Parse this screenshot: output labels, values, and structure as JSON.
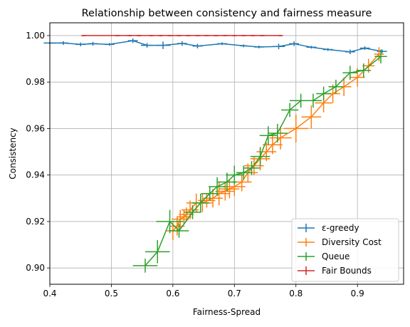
{
  "chart_data": {
    "type": "line",
    "title": "Relationship between consistency and fairness measure",
    "xlabel": "Fairness-Spread",
    "ylabel": "Consistency",
    "xlim": [
      0.4,
      0.975
    ],
    "ylim": [
      0.893,
      1.0055
    ],
    "xticks": [
      "0.4",
      "0.5",
      "0.6",
      "0.7",
      "0.8",
      "0.9"
    ],
    "yticks": [
      "0.90",
      "0.92",
      "0.94",
      "0.96",
      "0.98",
      "1.00"
    ],
    "grid": true,
    "legend_position": "lower-right",
    "series": [
      {
        "name": "ε-greedy",
        "color": "#1f77b4",
        "x": [
          0.4,
          0.422,
          0.45,
          0.47,
          0.497,
          0.535,
          0.558,
          0.584,
          0.615,
          0.64,
          0.68,
          0.715,
          0.74,
          0.772,
          0.797,
          0.825,
          0.852,
          0.888,
          0.912,
          0.94
        ],
        "y": [
          0.9968,
          0.9968,
          0.9962,
          0.9965,
          0.9962,
          0.9978,
          0.9958,
          0.9958,
          0.9966,
          0.9955,
          0.9965,
          0.9956,
          0.9951,
          0.9953,
          0.9965,
          0.995,
          0.994,
          0.993,
          0.9946,
          0.9932
        ],
        "xerr": [
          0.01,
          0.008,
          0.008,
          0.008,
          0.008,
          0.008,
          0.01,
          0.012,
          0.008,
          0.008,
          0.008,
          0.006,
          0.008,
          0.01,
          0.008,
          0.008,
          0.008,
          0.008,
          0.008,
          0.008
        ],
        "yerr": [
          0.0004,
          0.0008,
          0.0008,
          0.0008,
          0.0006,
          0.001,
          0.001,
          0.0016,
          0.001,
          0.001,
          0.0006,
          0.0006,
          0.0006,
          0.0012,
          0.001,
          0.0006,
          0.0006,
          0.001,
          0.0008,
          0.0008
        ]
      },
      {
        "name": "Diversity Cost",
        "color": "#ff7f0e",
        "x": [
          0.6,
          0.607,
          0.612,
          0.618,
          0.622,
          0.628,
          0.638,
          0.648,
          0.655,
          0.665,
          0.675,
          0.685,
          0.692,
          0.7,
          0.712,
          0.722,
          0.732,
          0.742,
          0.752,
          0.762,
          0.775,
          0.8,
          0.825,
          0.845,
          0.86,
          0.878,
          0.9,
          0.918,
          0.935
        ],
        "y": [
          0.916,
          0.918,
          0.921,
          0.922,
          0.923,
          0.925,
          0.928,
          0.928,
          0.929,
          0.93,
          0.932,
          0.933,
          0.934,
          0.935,
          0.937,
          0.941,
          0.944,
          0.947,
          0.95,
          0.953,
          0.956,
          0.96,
          0.965,
          0.971,
          0.975,
          0.978,
          0.982,
          0.987,
          0.992
        ],
        "xerr": [
          0.012,
          0.012,
          0.014,
          0.012,
          0.012,
          0.014,
          0.016,
          0.016,
          0.014,
          0.016,
          0.018,
          0.016,
          0.016,
          0.018,
          0.016,
          0.016,
          0.016,
          0.016,
          0.016,
          0.016,
          0.018,
          0.02,
          0.016,
          0.014,
          0.012,
          0.012,
          0.012,
          0.01,
          0.008
        ],
        "yerr": [
          0.004,
          0.004,
          0.004,
          0.003,
          0.003,
          0.004,
          0.004,
          0.004,
          0.003,
          0.004,
          0.005,
          0.004,
          0.004,
          0.004,
          0.004,
          0.004,
          0.004,
          0.005,
          0.004,
          0.004,
          0.005,
          0.006,
          0.005,
          0.004,
          0.004,
          0.004,
          0.004,
          0.003,
          0.003
        ]
      },
      {
        "name": "Queue",
        "color": "#2ca02c",
        "x": [
          0.555,
          0.575,
          0.595,
          0.61,
          0.632,
          0.645,
          0.66,
          0.672,
          0.688,
          0.7,
          0.715,
          0.728,
          0.742,
          0.755,
          0.77,
          0.79,
          0.808,
          0.828,
          0.845,
          0.865,
          0.888,
          0.91,
          0.938
        ],
        "y": [
          0.901,
          0.907,
          0.92,
          0.916,
          0.924,
          0.928,
          0.932,
          0.935,
          0.937,
          0.94,
          0.941,
          0.943,
          0.948,
          0.957,
          0.958,
          0.968,
          0.972,
          0.972,
          0.975,
          0.978,
          0.984,
          0.985,
          0.991
        ],
        "xerr": [
          0.02,
          0.02,
          0.022,
          0.016,
          0.014,
          0.014,
          0.014,
          0.014,
          0.016,
          0.014,
          0.012,
          0.014,
          0.016,
          0.014,
          0.016,
          0.014,
          0.018,
          0.014,
          0.012,
          0.012,
          0.012,
          0.012,
          0.01
        ],
        "yerr": [
          0.003,
          0.005,
          0.005,
          0.003,
          0.003,
          0.004,
          0.003,
          0.004,
          0.004,
          0.004,
          0.003,
          0.003,
          0.004,
          0.004,
          0.004,
          0.003,
          0.003,
          0.003,
          0.003,
          0.003,
          0.003,
          0.003,
          0.003
        ]
      },
      {
        "name": "Fair Bounds",
        "color": "#d62728",
        "x": [
          0.455,
          0.51,
          0.53,
          0.545,
          0.565,
          0.58,
          0.595,
          0.61,
          0.625,
          0.64,
          0.655,
          0.67,
          0.685,
          0.7,
          0.715,
          0.73,
          0.745,
          0.775
        ],
        "y": [
          1.0,
          1.0,
          1.0,
          1.0,
          1.0,
          1.0,
          1.0,
          1.0,
          1.0,
          1.0,
          1.0,
          1.0,
          1.0,
          1.0,
          1.0,
          1.0,
          1.0,
          1.0
        ],
        "xerr": [
          0.004,
          0.004,
          0.004,
          0.004,
          0.004,
          0.004,
          0.004,
          0.004,
          0.004,
          0.004,
          0.004,
          0.004,
          0.004,
          0.004,
          0.004,
          0.004,
          0.004,
          0.004
        ],
        "yerr": [
          0.0003,
          0.0003,
          0.0003,
          0.0003,
          0.0003,
          0.0003,
          0.0003,
          0.0003,
          0.0003,
          0.0003,
          0.0003,
          0.0003,
          0.0003,
          0.0003,
          0.0003,
          0.0003,
          0.0003,
          0.0003
        ]
      }
    ]
  }
}
